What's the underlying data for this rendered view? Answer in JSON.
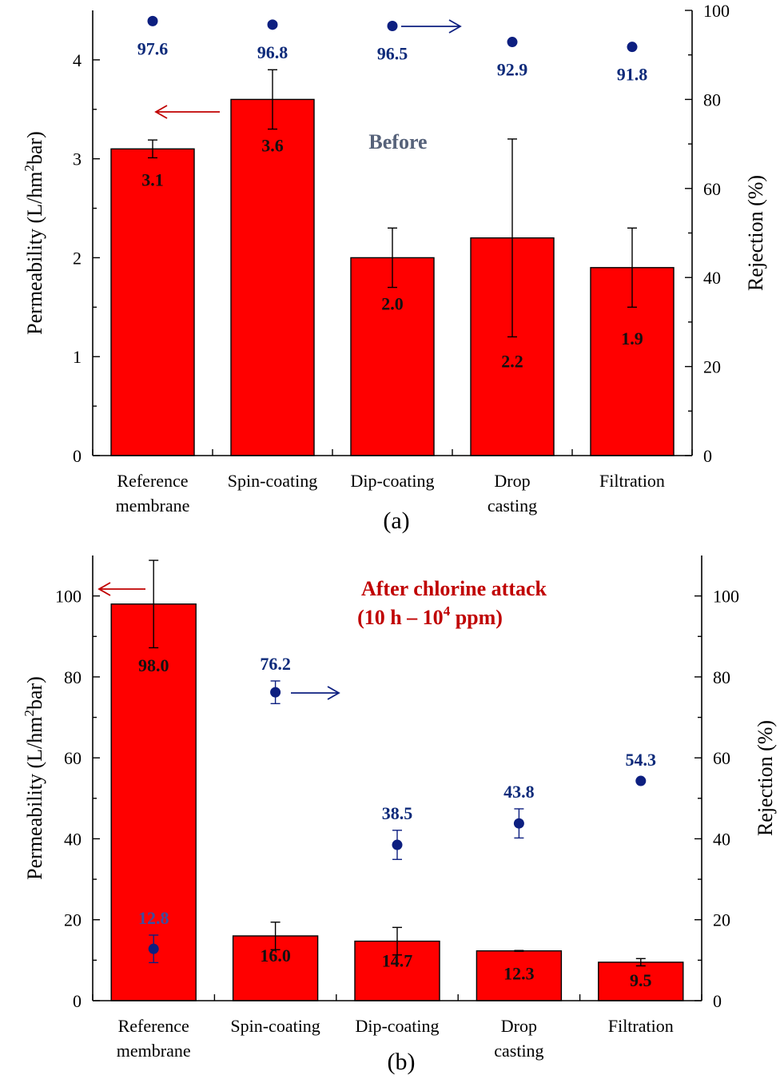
{
  "chart_data": [
    {
      "type": "bar",
      "panel_label": "(a)",
      "annotation": "Before",
      "categories": [
        [
          "Reference",
          "membrane"
        ],
        [
          "Spin-coating"
        ],
        [
          "Dip-coating"
        ],
        [
          "Drop",
          "casting"
        ],
        [
          "Filtration"
        ]
      ],
      "ylabel": "Permeability (L/hm",
      "ylabel_sup": "2",
      "ylabel_tail": "bar)",
      "y2label": "Rejection (%)",
      "ylim": [
        0,
        4.5
      ],
      "y2lim": [
        0,
        100
      ],
      "yticks": [
        "0",
        "1",
        "2",
        "3",
        "4"
      ],
      "y2ticks": [
        "0",
        "20",
        "40",
        "60",
        "80",
        "100"
      ],
      "series": [
        {
          "type": "bar",
          "values": [
            3.1,
            3.6,
            2.0,
            2.2,
            1.9
          ],
          "labels": [
            "3.1",
            "3.6",
            "2.0",
            "2.2",
            "1.9"
          ],
          "errors": [
            0.09,
            0.3,
            0.3,
            1.0,
            0.4
          ],
          "color": "#ff0000"
        },
        {
          "type": "scatter",
          "axis": "right",
          "values": [
            97.6,
            96.8,
            96.5,
            92.9,
            91.8
          ],
          "labels": [
            "97.6",
            "96.8",
            "96.5",
            "92.9",
            "91.8"
          ],
          "errors": [
            0,
            0,
            0,
            0,
            0
          ],
          "color": "#0d1f80"
        }
      ]
    },
    {
      "type": "bar",
      "panel_label": "(b)",
      "annotation_line1": "After chlorine attack",
      "annotation_line2_pre": "(10 h – 10",
      "annotation_line2_sup": "4",
      "annotation_line2_post": " ppm)",
      "categories": [
        [
          "Reference",
          "membrane"
        ],
        [
          "Spin-coating"
        ],
        [
          "Dip-coating"
        ],
        [
          "Drop",
          "casting"
        ],
        [
          "Filtration"
        ]
      ],
      "ylabel": "Permeability (L/hm",
      "ylabel_sup": "2",
      "ylabel_tail": "bar)",
      "y2label": "Rejection (%)",
      "ylim": [
        0,
        110
      ],
      "y2lim": [
        0,
        110
      ],
      "yticks": [
        "0",
        "20",
        "40",
        "60",
        "80",
        "100"
      ],
      "y2ticks": [
        "0",
        "20",
        "40",
        "60",
        "80",
        "100"
      ],
      "series": [
        {
          "type": "bar",
          "values": [
            98.0,
            16.0,
            14.7,
            12.3,
            9.5
          ],
          "labels": [
            "98.0",
            "16.0",
            "14.7",
            "12.3",
            "9.5"
          ],
          "errors": [
            10.8,
            3.4,
            3.4,
            0.1,
            0.9
          ],
          "color": "#ff0000"
        },
        {
          "type": "scatter",
          "axis": "right",
          "values": [
            12.8,
            76.2,
            38.5,
            43.8,
            54.3
          ],
          "labels": [
            "12.8",
            "76.2",
            "38.5",
            "43.8",
            "54.3"
          ],
          "errors": [
            3.4,
            2.8,
            3.6,
            3.6,
            0
          ],
          "color": "#0d1f80"
        }
      ]
    }
  ]
}
